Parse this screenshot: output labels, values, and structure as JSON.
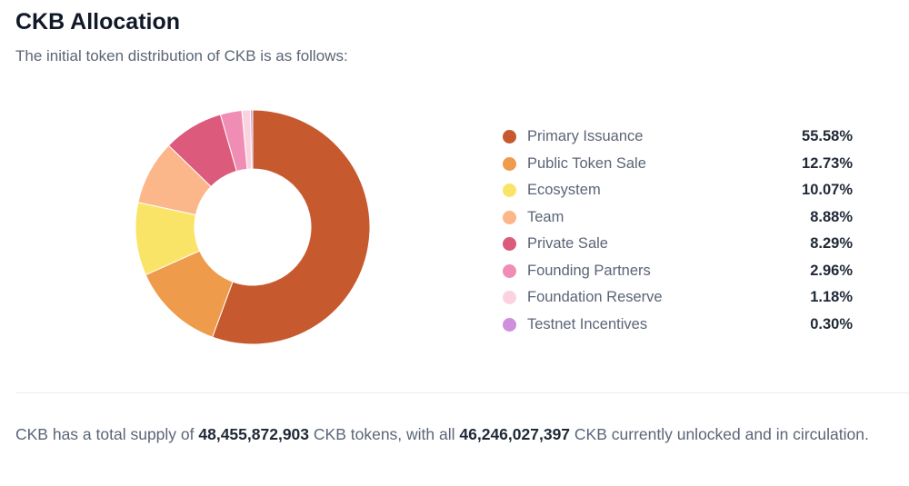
{
  "header": {
    "title": "CKB Allocation",
    "subtitle": "The initial token distribution of CKB is as follows:"
  },
  "chart_data": {
    "type": "pie",
    "donut": true,
    "legend_placement": "right",
    "categories": [
      "Primary Issuance",
      "Public Token Sale",
      "Ecosystem",
      "Team",
      "Private Sale",
      "Founding Partners",
      "Foundation Reserve",
      "Testnet Incentives"
    ],
    "values": [
      55.58,
      12.73,
      10.07,
      8.88,
      8.29,
      2.96,
      1.18,
      0.3
    ],
    "labels": [
      "55.58%",
      "12.73%",
      "10.07%",
      "8.88%",
      "8.29%",
      "2.96%",
      "1.18%",
      "0.30%"
    ],
    "colors": [
      "#c65a2e",
      "#ef9b4c",
      "#fae467",
      "#fbb68a",
      "#dc5a7b",
      "#ef8db5",
      "#fbd3de",
      "#cf8fdc"
    ]
  },
  "footer": {
    "text_1": "CKB has a total supply of ",
    "total_supply": "48,455,872,903",
    "text_2": " CKB tokens, with all ",
    "circulating": "46,246,027,397",
    "text_3": " CKB currently unlocked and in circulation."
  }
}
